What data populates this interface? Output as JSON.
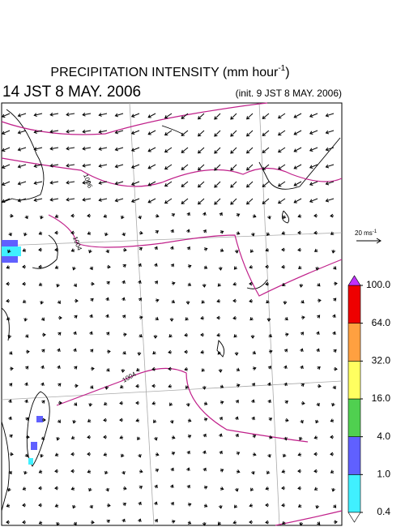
{
  "header": {
    "title": "PRECIPITATION INTENSITY (mm hour",
    "title_sup": "-1",
    "title_end": ")",
    "time": "14 JST 8 MAY. 2006",
    "init": "(init. 9 JST 8 MAY. 2006)"
  },
  "reference_vector": {
    "label": "20 ms",
    "sup": "-1"
  },
  "contour_labels": [
    "1006",
    "1004",
    "1004"
  ],
  "legend": {
    "levels": [
      {
        "value": 0.4,
        "label": "0.4"
      },
      {
        "value": 1,
        "label": "1.0"
      },
      {
        "value": 4,
        "label": "4.0"
      },
      {
        "value": 16,
        "label": "16.0"
      },
      {
        "value": 32,
        "label": "32.0"
      },
      {
        "value": 64,
        "label": "64.0"
      },
      {
        "value": 100,
        "label": "100.0"
      }
    ],
    "colors": [
      "#40f0ff",
      "#6060ff",
      "#50d050",
      "#ffff60",
      "#ffa040",
      "#ee0000"
    ],
    "under_color": "#ffffff",
    "over_color": "#c030ff"
  }
}
